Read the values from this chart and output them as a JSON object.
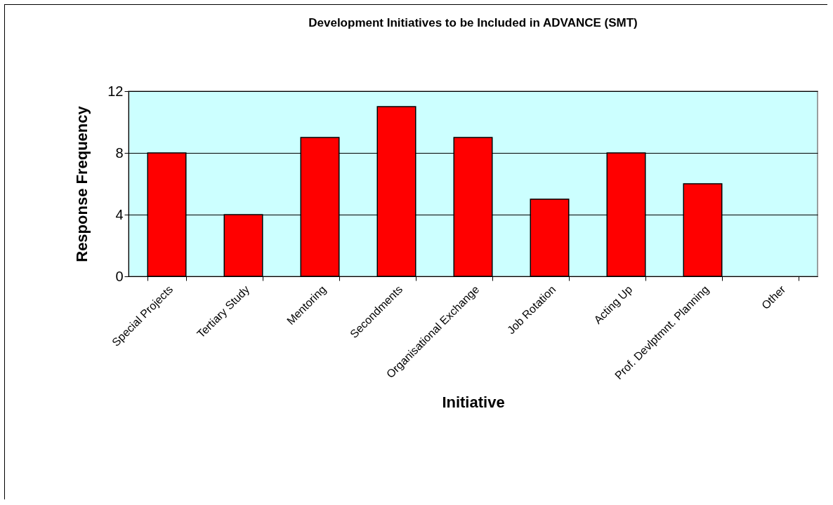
{
  "chart_data": {
    "type": "bar",
    "title": "Development Initiatives to be Included in ADVANCE (SMT)",
    "xlabel": "Initiative",
    "ylabel": "Response Frequency",
    "categories": [
      "Special Projects",
      "Tertiary Study",
      "Mentoring",
      "Secondments",
      "Organisational Exchange",
      "Job Rotation",
      "Acting Up",
      "Prof. Devlptmnt. Planning",
      "Other"
    ],
    "values": [
      8,
      4,
      9,
      11,
      9,
      5,
      8,
      6,
      0
    ],
    "color": "#ff0000",
    "ylim": [
      0,
      12
    ],
    "yticks": [
      0,
      4,
      8,
      12
    ],
    "grid": "y"
  }
}
